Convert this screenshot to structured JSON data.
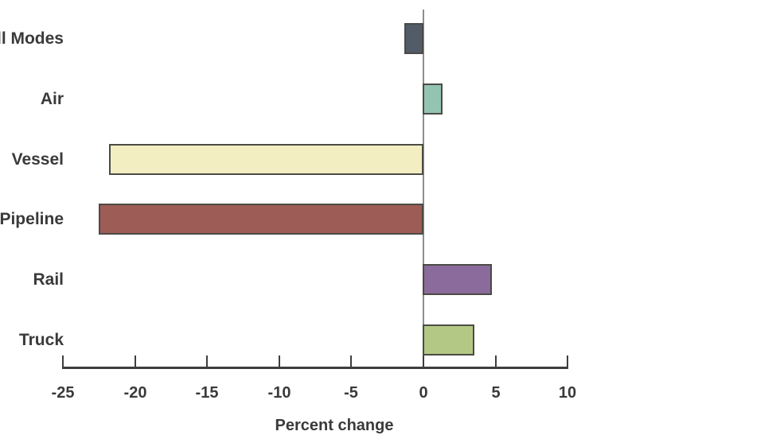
{
  "style": {
    "background": "#ffffff",
    "text_color": "#3a3a3a",
    "axis_color": "#3e3e3e",
    "zero_line_color": "#8e8e8e",
    "bar_border_color": "#4c4a45"
  },
  "chart_data": {
    "type": "bar",
    "orientation": "horizontal",
    "xlabel": "Percent change",
    "categories": [
      "All Modes",
      "Air",
      "Vessel",
      "Pipeline",
      "Rail",
      "Truck"
    ],
    "values": [
      -1.3,
      1.4,
      -21.8,
      -22.5,
      4.8,
      3.6
    ],
    "bar_colors": [
      "#525c69",
      "#93c4b1",
      "#f2eec2",
      "#9d5c55",
      "#8a6b9b",
      "#b3c884"
    ],
    "xlim": [
      -25,
      10
    ],
    "xticks": [
      -25,
      -20,
      -15,
      -10,
      -5,
      0,
      5,
      10
    ],
    "xtick_labels": [
      "-25",
      "-20",
      "-15",
      "-10",
      "-5",
      "0",
      "5",
      "10"
    ],
    "grid": false,
    "legend_position": "none"
  }
}
